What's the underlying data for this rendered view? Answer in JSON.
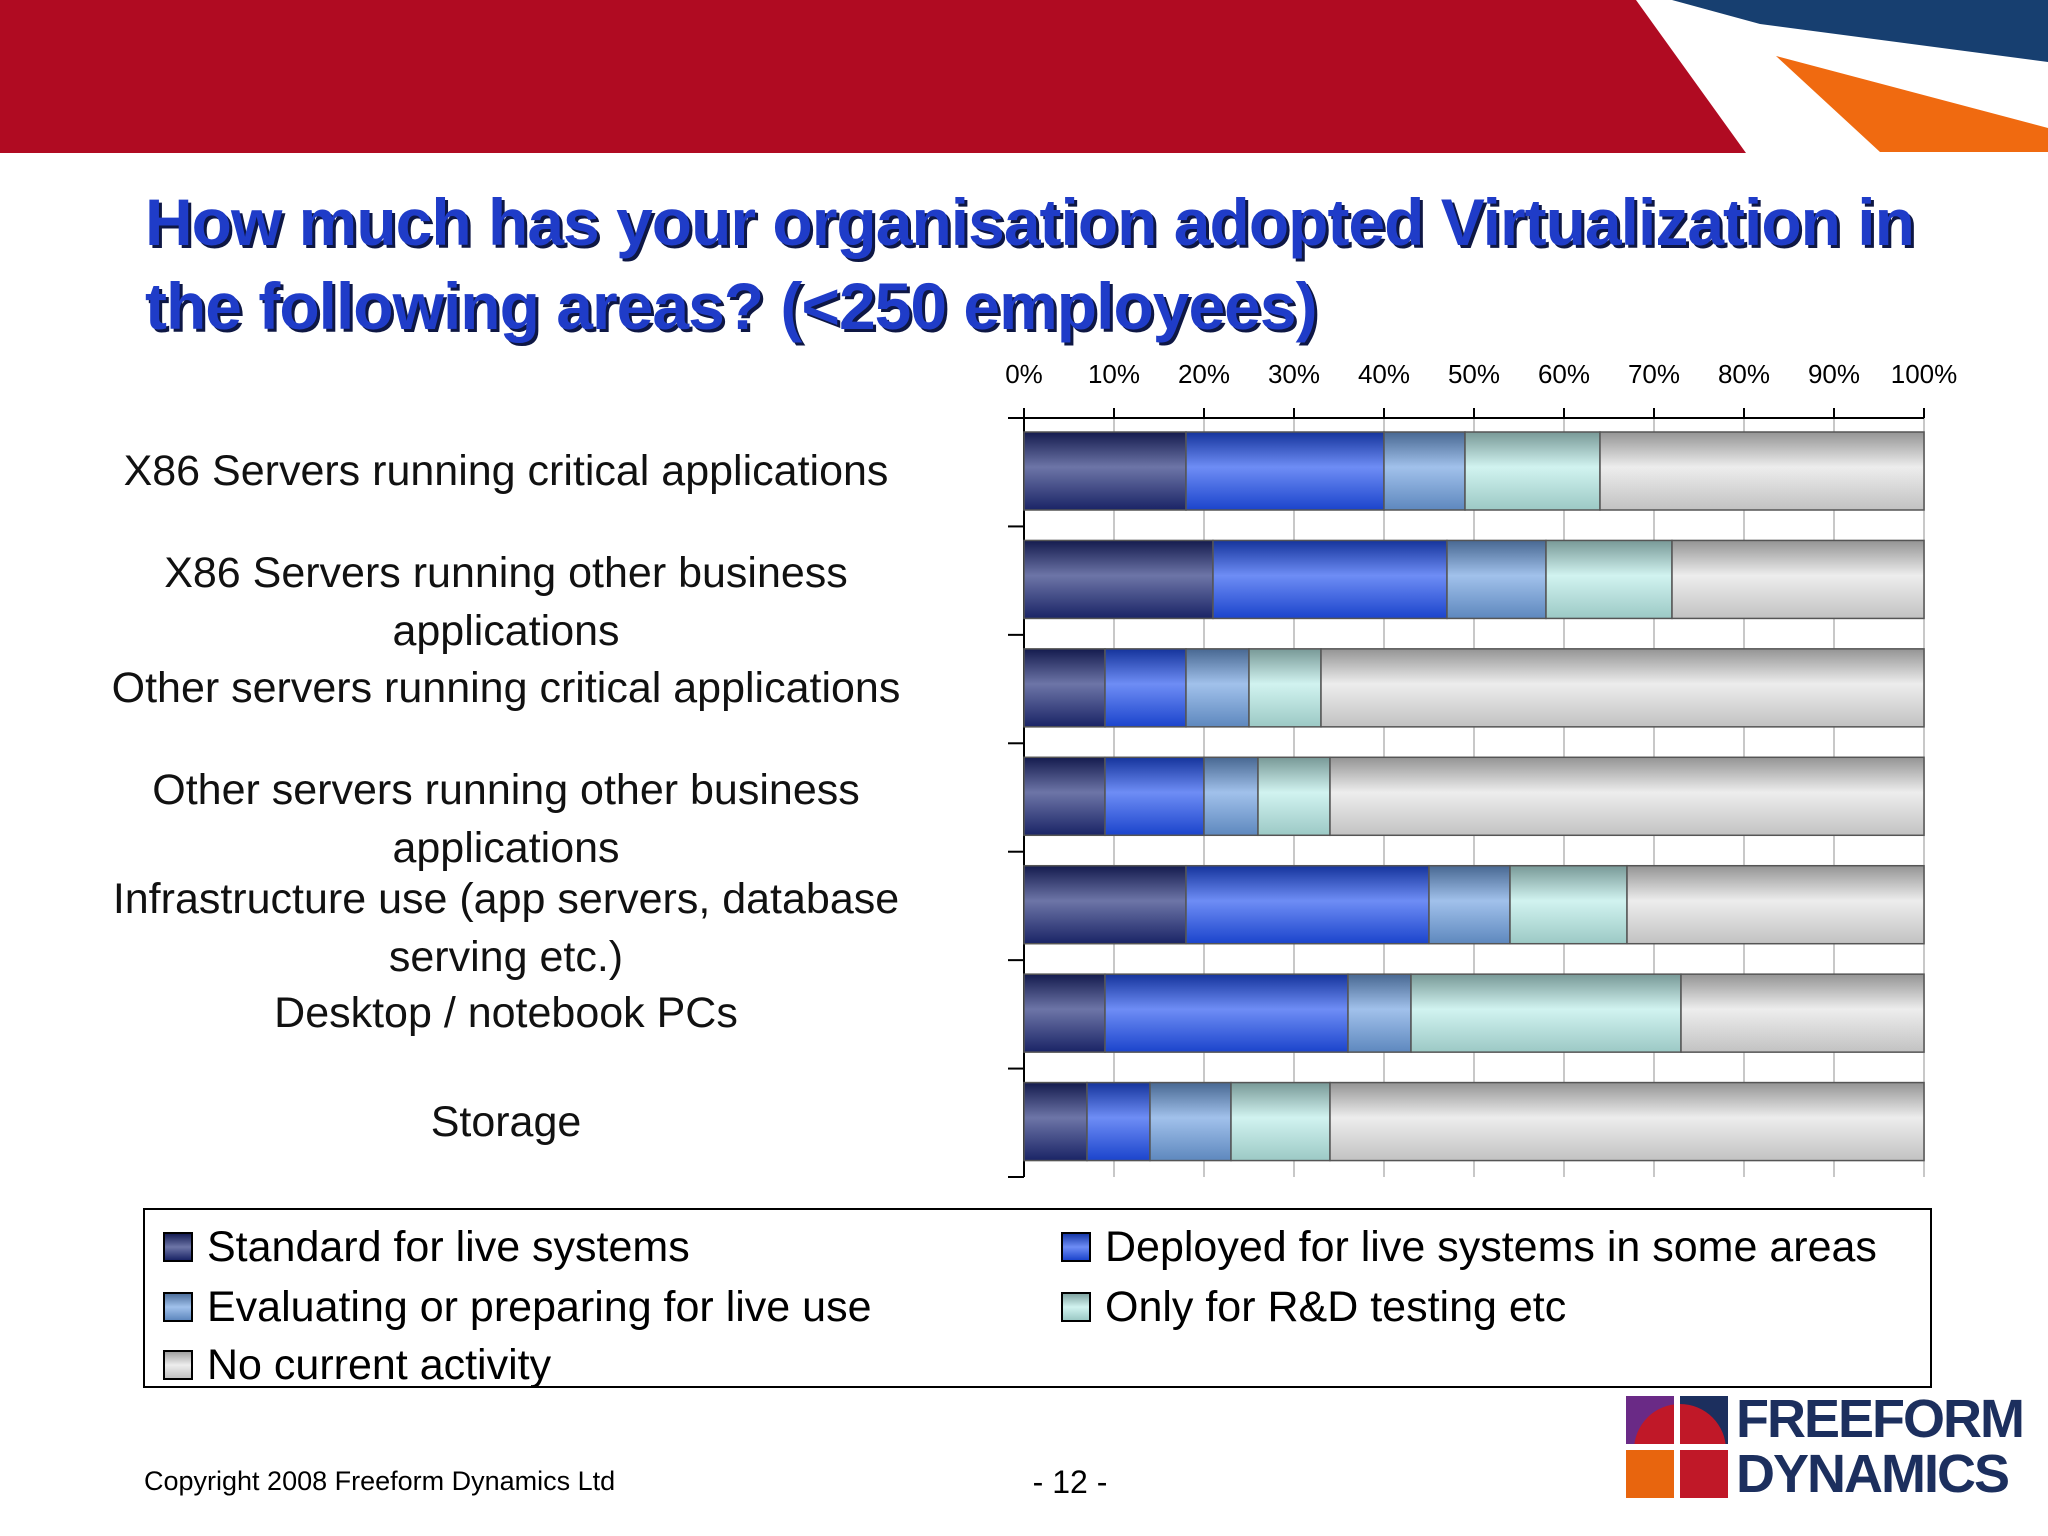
{
  "title": {
    "line1": "How much has your organisation adopted Virtualization in",
    "line2": "the following areas? (<250 employees)"
  },
  "chart_data": {
    "type": "bar",
    "orientation": "horizontal",
    "stacked": "percent",
    "title": "How much has your organisation adopted Virtualization in the following areas? (<250 employees)",
    "categories": [
      "X86 Servers running critical applications",
      "X86 Servers running other business applications",
      "Other servers running critical applications",
      "Other servers running other business applications",
      "Infrastructure use (app servers, database serving etc.)",
      "Desktop / notebook PCs",
      "Storage"
    ],
    "category_lines": [
      [
        "X86 Servers running critical applications"
      ],
      [
        "X86 Servers running other business",
        "applications"
      ],
      [
        "Other servers running critical applications"
      ],
      [
        "Other servers running other business",
        "applications"
      ],
      [
        "Infrastructure use (app servers, database",
        "serving etc.)"
      ],
      [
        "Desktop / notebook PCs"
      ],
      [
        "Storage"
      ]
    ],
    "x_ticks": [
      "0%",
      "10%",
      "20%",
      "30%",
      "40%",
      "50%",
      "60%",
      "70%",
      "80%",
      "90%",
      "100%"
    ],
    "xlim": [
      0,
      100
    ],
    "axis_position": "top",
    "grid": true,
    "legend_position": "bottom",
    "series": [
      {
        "name": "Standard for live systems",
        "color": "#1e2a78",
        "values": [
          18,
          21,
          9,
          9,
          18,
          9,
          7
        ]
      },
      {
        "name": "Deployed for live systems in some areas",
        "color": "#2050f0",
        "values": [
          22,
          26,
          9,
          11,
          27,
          27,
          7
        ]
      },
      {
        "name": "Evaluating or preparing for live use",
        "color": "#6fa0e0",
        "values": [
          9,
          11,
          7,
          6,
          9,
          7,
          9
        ]
      },
      {
        "name": "Only for R&D testing etc",
        "color": "#b8ece8",
        "values": [
          15,
          14,
          8,
          8,
          13,
          30,
          11
        ]
      },
      {
        "name": "No current activity",
        "color": "#e4e4e4",
        "values": [
          36,
          28,
          67,
          66,
          33,
          27,
          66
        ]
      }
    ]
  },
  "footer": {
    "copyright": "Copyright 2008 Freeform Dynamics Ltd",
    "page_number": "- 12 -"
  },
  "logo": {
    "line1": "FREEFORM",
    "line2": "DYNAMICS"
  }
}
